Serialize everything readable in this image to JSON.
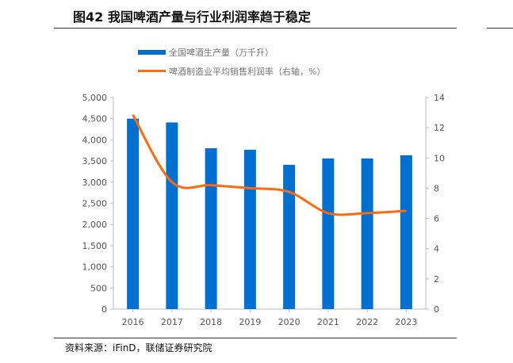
{
  "title": "图42 我国啤酒产量与行业利润率趋于稳定",
  "source": "资料来源：iFinD，联储证券研究院",
  "chart_data": {
    "type": "bar+line",
    "categories": [
      "2016",
      "2017",
      "2018",
      "2019",
      "2020",
      "2021",
      "2022",
      "2023"
    ],
    "series": [
      {
        "name": "全国啤酒生产量（万千升）",
        "type": "bar",
        "axis": "left",
        "color": "#0070D0",
        "values": [
          4500,
          4410,
          3800,
          3765,
          3410,
          3560,
          3560,
          3635
        ]
      },
      {
        "name": "啤酒制造业平均销售利润率（右轴，%）",
        "type": "line",
        "axis": "right",
        "color": "#FF6A10",
        "values": [
          12.85,
          8.4,
          8.2,
          8.0,
          7.75,
          6.35,
          6.35,
          6.5
        ]
      }
    ],
    "left_ylim": [
      0,
      5000
    ],
    "left_ticks": [
      "0",
      "500",
      "1,000",
      "1,500",
      "2,000",
      "2,500",
      "3,000",
      "3,500",
      "4,000",
      "4,500",
      "5,000"
    ],
    "right_ylim": [
      0,
      14
    ],
    "right_ticks": [
      "0",
      "2",
      "4",
      "6",
      "8",
      "10",
      "12",
      "14"
    ],
    "legend": "top",
    "grid": false
  }
}
